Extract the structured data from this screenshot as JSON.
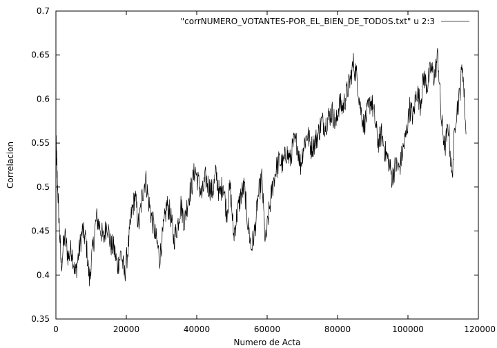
{
  "chart_data": {
    "type": "line",
    "title": "",
    "xlabel": "Numero de Acta",
    "ylabel": "Correlacion",
    "xlim": [
      0,
      120000
    ],
    "ylim": [
      0.35,
      0.7
    ],
    "xticks": [
      0,
      20000,
      40000,
      60000,
      80000,
      100000,
      120000
    ],
    "yticks": [
      0.35,
      0.4,
      0.45,
      0.5,
      0.55,
      0.6,
      0.65,
      0.7
    ],
    "xtick_labels": [
      "0",
      "20000",
      "40000",
      "60000",
      "80000",
      "100000",
      "120000"
    ],
    "ytick_labels": [
      "0.35",
      "0.4",
      "0.45",
      "0.5",
      "0.55",
      "0.6",
      "0.65",
      "0.7"
    ],
    "grid": false,
    "legend_position": "top-right",
    "series": [
      {
        "name": "\"corrNUMERO_VOTANTES-POR_EL_BIEN_DE_TODOS.txt\" u 2:3",
        "color": "#000000",
        "x": [
          0,
          300,
          800,
          1500,
          2500,
          3500,
          4500,
          5500,
          6500,
          7500,
          8500,
          9500,
          10500,
          11500,
          12500,
          13500,
          14500,
          15500,
          16500,
          17500,
          18500,
          19500,
          20500,
          21500,
          22500,
          23500,
          24500,
          25500,
          26500,
          27500,
          28500,
          29500,
          30500,
          31500,
          32500,
          33500,
          34500,
          35500,
          36500,
          37500,
          38500,
          39500,
          40500,
          41500,
          42500,
          43500,
          44500,
          45500,
          46500,
          47500,
          48500,
          49500,
          50500,
          51500,
          52500,
          53500,
          54500,
          55500,
          56500,
          57500,
          58500,
          59500,
          60500,
          61500,
          62500,
          63500,
          64500,
          65500,
          66500,
          67500,
          68500,
          69500,
          70500,
          71500,
          72500,
          73500,
          74500,
          75500,
          76500,
          77500,
          78500,
          79500,
          80500,
          81500,
          82500,
          83500,
          84500,
          85500,
          86500,
          87500,
          88500,
          89500,
          90500,
          91500,
          92500,
          93500,
          94500,
          95500,
          96500,
          97500,
          98500,
          99500,
          100500,
          101500,
          102500,
          103500,
          104500,
          105500,
          106500,
          107500,
          108500,
          109500,
          110500,
          111500,
          112500,
          113500,
          114500,
          115500,
          116500
        ],
        "y": [
          0.555,
          0.52,
          0.47,
          0.41,
          0.445,
          0.42,
          0.43,
          0.4,
          0.425,
          0.45,
          0.44,
          0.395,
          0.43,
          0.465,
          0.455,
          0.44,
          0.46,
          0.435,
          0.43,
          0.41,
          0.425,
          0.4,
          0.43,
          0.47,
          0.49,
          0.455,
          0.49,
          0.51,
          0.48,
          0.46,
          0.44,
          0.42,
          0.45,
          0.48,
          0.47,
          0.44,
          0.455,
          0.48,
          0.46,
          0.485,
          0.5,
          0.52,
          0.505,
          0.49,
          0.51,
          0.5,
          0.495,
          0.515,
          0.49,
          0.505,
          0.47,
          0.5,
          0.445,
          0.47,
          0.49,
          0.5,
          0.46,
          0.43,
          0.45,
          0.49,
          0.51,
          0.435,
          0.47,
          0.5,
          0.52,
          0.53,
          0.525,
          0.54,
          0.53,
          0.55,
          0.55,
          0.525,
          0.55,
          0.56,
          0.545,
          0.55,
          0.56,
          0.575,
          0.57,
          0.58,
          0.585,
          0.57,
          0.595,
          0.59,
          0.605,
          0.62,
          0.64,
          0.625,
          0.59,
          0.57,
          0.585,
          0.6,
          0.58,
          0.55,
          0.56,
          0.54,
          0.53,
          0.51,
          0.525,
          0.52,
          0.54,
          0.56,
          0.59,
          0.58,
          0.61,
          0.595,
          0.625,
          0.615,
          0.635,
          0.625,
          0.65,
          0.575,
          0.545,
          0.57,
          0.51,
          0.58,
          0.6,
          0.64,
          0.56
        ]
      }
    ]
  }
}
